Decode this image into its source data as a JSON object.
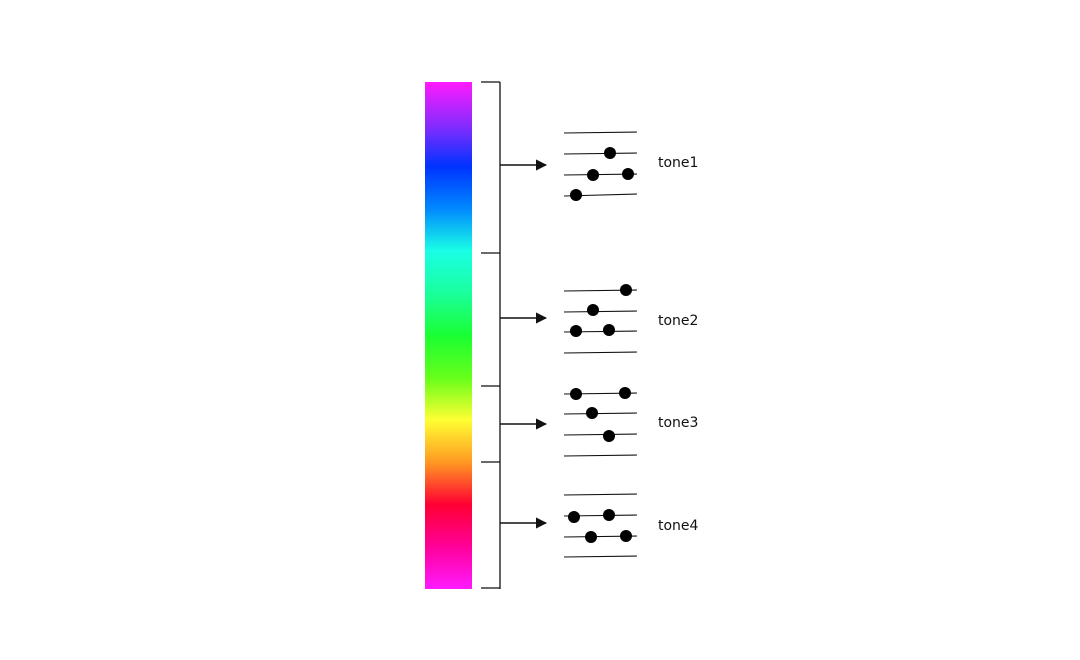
{
  "colors": {
    "stroke": "#111111",
    "dot": "#000000",
    "gradient_stops": [
      "#ff1aff",
      "#8a2bff",
      "#0033ff",
      "#0088ff",
      "#1affe6",
      "#1aff9c",
      "#1aff33",
      "#66ff1a",
      "#ffff33",
      "#ff9922",
      "#ff0033",
      "#ff0099",
      "#ff1aff"
    ]
  },
  "tones": [
    {
      "label": "tone1"
    },
    {
      "label": "tone2"
    },
    {
      "label": "tone3"
    },
    {
      "label": "tone4"
    }
  ]
}
